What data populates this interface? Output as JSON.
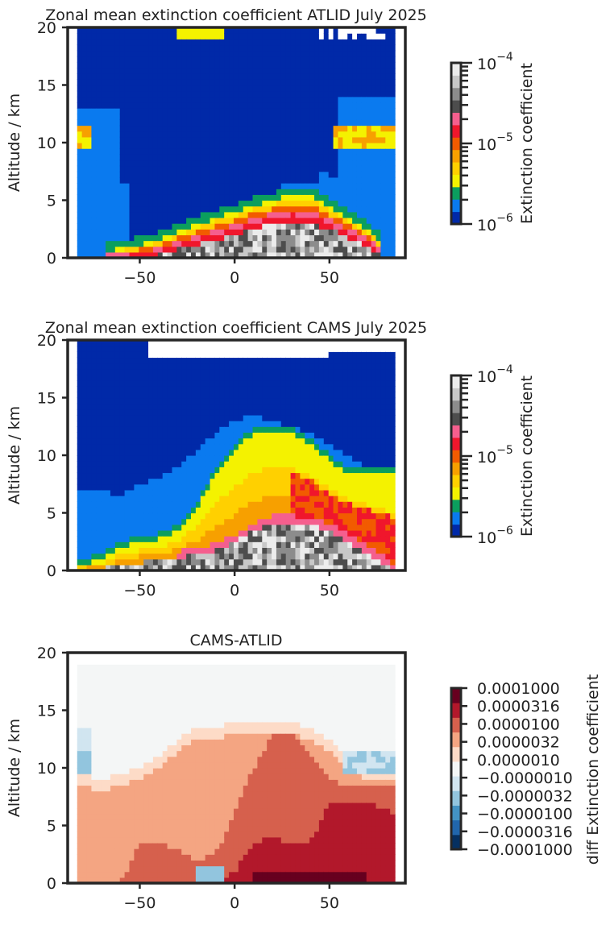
{
  "chart_data": [
    {
      "type": "heatmap",
      "title": "Zonal mean extinction coefficient ATLID July 2025",
      "ylabel": "Altitude / km",
      "xlim": [
        -88,
        90
      ],
      "ylim": [
        0,
        20
      ],
      "xticks": [
        -50,
        0,
        50
      ],
      "xtick_labels": [
        "−50",
        "0",
        "50"
      ],
      "yticks": [
        0,
        5,
        10,
        15,
        20
      ],
      "colorbar": {
        "label": "Extinction coefficient",
        "scale": "log",
        "range": [
          1e-06,
          0.0001
        ],
        "tick_labels": [
          "10",
          "10",
          "10"
        ],
        "tick_exponents": [
          "−4",
          "−5",
          "−6"
        ],
        "colors": [
          "#0029a8",
          "#0a7aef",
          "#0b9e5e",
          "#f4f200",
          "#ffd000",
          "#f7a000",
          "#f25b00",
          "#f0162c",
          "#f55f8e",
          "#4d4d4d",
          "#8c8c8c",
          "#c8c8c8",
          "#ececec"
        ]
      },
      "description_values": {
        "bottom_layer": "grey 1e-5 to 1e-4 near surface between -50 and 70",
        "layers": [
          {
            "lat": [
              -83,
              83
            ],
            "top_km": 20
          },
          {
            "lat": [
              -60,
              80
            ],
            "peak_km": 6
          }
        ]
      },
      "profile": {
        "lat": [
          -83,
          -70,
          -60,
          -50,
          -40,
          -30,
          -20,
          -10,
          0,
          10,
          20,
          30,
          40,
          50,
          60,
          70,
          80,
          83
        ],
        "surface_km": [
          0,
          0,
          0,
          0,
          0.3,
          0.8,
          1.2,
          1.6,
          2.0,
          2.5,
          3.0,
          3.2,
          3.0,
          2.5,
          1.8,
          1.0,
          0,
          0
        ],
        "aerosol_top_km": [
          0.5,
          0.6,
          0.8,
          1.2,
          1.6,
          2.2,
          2.9,
          3.5,
          4.0,
          4.6,
          5.0,
          5.5,
          5.5,
          4.5,
          3.5,
          2.5,
          1.0,
          0.5
        ],
        "cirrus_km": [
          10.5,
          10.5
        ]
      }
    },
    {
      "type": "heatmap",
      "title": "Zonal mean extinction coefficient CAMS July 2025",
      "ylabel": "Altitude / km",
      "xlim": [
        -88,
        90
      ],
      "ylim": [
        0,
        20
      ],
      "xticks": [
        -50,
        0,
        50
      ],
      "xtick_labels": [
        "−50",
        "0",
        "50"
      ],
      "yticks": [
        0,
        5,
        10,
        15,
        20
      ],
      "colorbar": {
        "label": "Extinction coefficient",
        "scale": "log",
        "range": [
          1e-06,
          0.0001
        ],
        "tick_labels": [
          "10",
          "10",
          "10"
        ],
        "tick_exponents": [
          "−4",
          "−5",
          "−6"
        ]
      },
      "profile": {
        "lat": [
          -83,
          -70,
          -60,
          -50,
          -40,
          -30,
          -20,
          -10,
          0,
          10,
          20,
          30,
          40,
          50,
          60,
          70,
          80,
          83
        ],
        "grey_top_km": [
          0,
          0.2,
          0.5,
          0.7,
          0.9,
          1.1,
          1.4,
          1.8,
          2.5,
          3.5,
          4.2,
          4.2,
          4.0,
          3.5,
          2.5,
          1.5,
          0.5,
          0
        ],
        "yellow_top_km": [
          0.5,
          1.0,
          2.0,
          2.5,
          2.8,
          3.5,
          5.5,
          8.5,
          10.5,
          12.0,
          12.0,
          12.0,
          11.0,
          9.5,
          8.5,
          8.5,
          8.5,
          8.5
        ],
        "light_blue_top_km": [
          7.0,
          7.0,
          6.5,
          7.5,
          8.0,
          9.0,
          10.5,
          12.0,
          13.0,
          13.5,
          13.0,
          12.5,
          12.0,
          11.0,
          10.0,
          9.0,
          9.0,
          9.0
        ]
      }
    },
    {
      "type": "heatmap",
      "title": "CAMS-ATLID",
      "ylabel": "Altitude / km",
      "xlim": [
        -88,
        90
      ],
      "ylim": [
        0,
        20
      ],
      "xticks": [
        -50,
        0,
        50
      ],
      "xtick_labels": [
        "−50",
        "0",
        "50"
      ],
      "yticks": [
        0,
        5,
        10,
        15,
        20
      ],
      "colorbar": {
        "label": "diff Extinction coefficient",
        "scale": "symlog",
        "tick_labels": [
          "0.0001000",
          "0.0000316",
          "0.0000100",
          "0.0000032",
          "0.0000010",
          "−0.0000010",
          "−0.0000032",
          "−0.0000100",
          "−0.0000316",
          "−0.0001000"
        ],
        "colors": [
          "#67001f",
          "#b2182b",
          "#d6604d",
          "#f4a582",
          "#fddbc7",
          "#f4f6f6",
          "#d1e5f0",
          "#92c5de",
          "#4393c3",
          "#2166ac",
          "#053061"
        ]
      },
      "profile": {
        "lat": [
          -83,
          -70,
          -60,
          -50,
          -40,
          -30,
          -20,
          -10,
          0,
          10,
          20,
          30,
          40,
          50,
          60,
          70,
          80,
          83
        ],
        "light_red_top_km": [
          8.5,
          8.0,
          8.5,
          9.0,
          10.0,
          11.5,
          12.5,
          12.5,
          13.0,
          13.0,
          13.0,
          13.0,
          12.5,
          11.5,
          10.0,
          9.0,
          9.0,
          9.0
        ],
        "red_top_km": [
          0,
          0,
          0,
          3.5,
          3.5,
          3.0,
          2.0,
          2.5,
          6.0,
          10.0,
          13.0,
          13.0,
          11.0,
          9.0,
          8.5,
          8.5,
          8.5,
          8.5
        ],
        "dark_red_top_km": [
          0,
          0,
          0,
          0,
          0,
          0,
          0,
          0,
          1.0,
          3.5,
          4.0,
          3.5,
          3.5,
          7.0,
          7.0,
          7.0,
          6.5,
          6.0
        ]
      }
    }
  ]
}
